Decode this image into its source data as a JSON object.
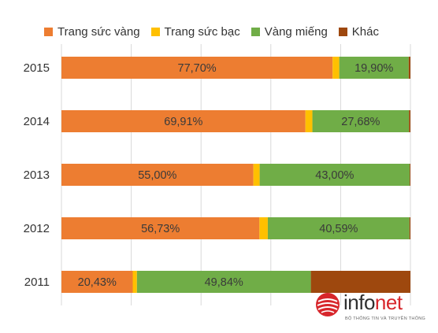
{
  "chart_data": {
    "type": "bar",
    "orientation": "horizontal",
    "stacked": true,
    "title": "",
    "xlabel": "",
    "ylabel": "",
    "xlim": [
      0,
      100
    ],
    "grid": true,
    "legend_position": "top",
    "categories": [
      "2015",
      "2014",
      "2013",
      "2012",
      "2011"
    ],
    "series": [
      {
        "name": "Trang sức vàng",
        "color": "#ed7d31",
        "values": [
          77.7,
          69.91,
          55.0,
          56.73,
          20.43
        ],
        "labels": [
          "77,70%",
          "69,91%",
          "55,00%",
          "56,73%",
          "20,43%"
        ]
      },
      {
        "name": "Trang sức bạc",
        "color": "#ffc000",
        "values": [
          1.9,
          2.0,
          1.8,
          2.4,
          1.2
        ],
        "labels": [
          "",
          "",
          "",
          "",
          ""
        ]
      },
      {
        "name": "Vàng miếng",
        "color": "#70ad47",
        "values": [
          19.9,
          27.68,
          43.0,
          40.59,
          49.84
        ],
        "labels": [
          "19,90%",
          "27,68%",
          "43,00%",
          "40,59%",
          "49,84%"
        ]
      },
      {
        "name": "Khác",
        "color": "#9e480e",
        "values": [
          0.5,
          0.41,
          0.2,
          0.28,
          28.53
        ],
        "labels": [
          "",
          "",
          "",
          "",
          ""
        ]
      }
    ]
  },
  "logo": {
    "brand": "infonet",
    "brand_part1": "info",
    "brand_part2": "net",
    "tagline": "BỘ THÔNG TIN VÀ TRUYỀN THÔNG",
    "color_red": "#d7262b",
    "color_dark": "#2f2f2f"
  }
}
